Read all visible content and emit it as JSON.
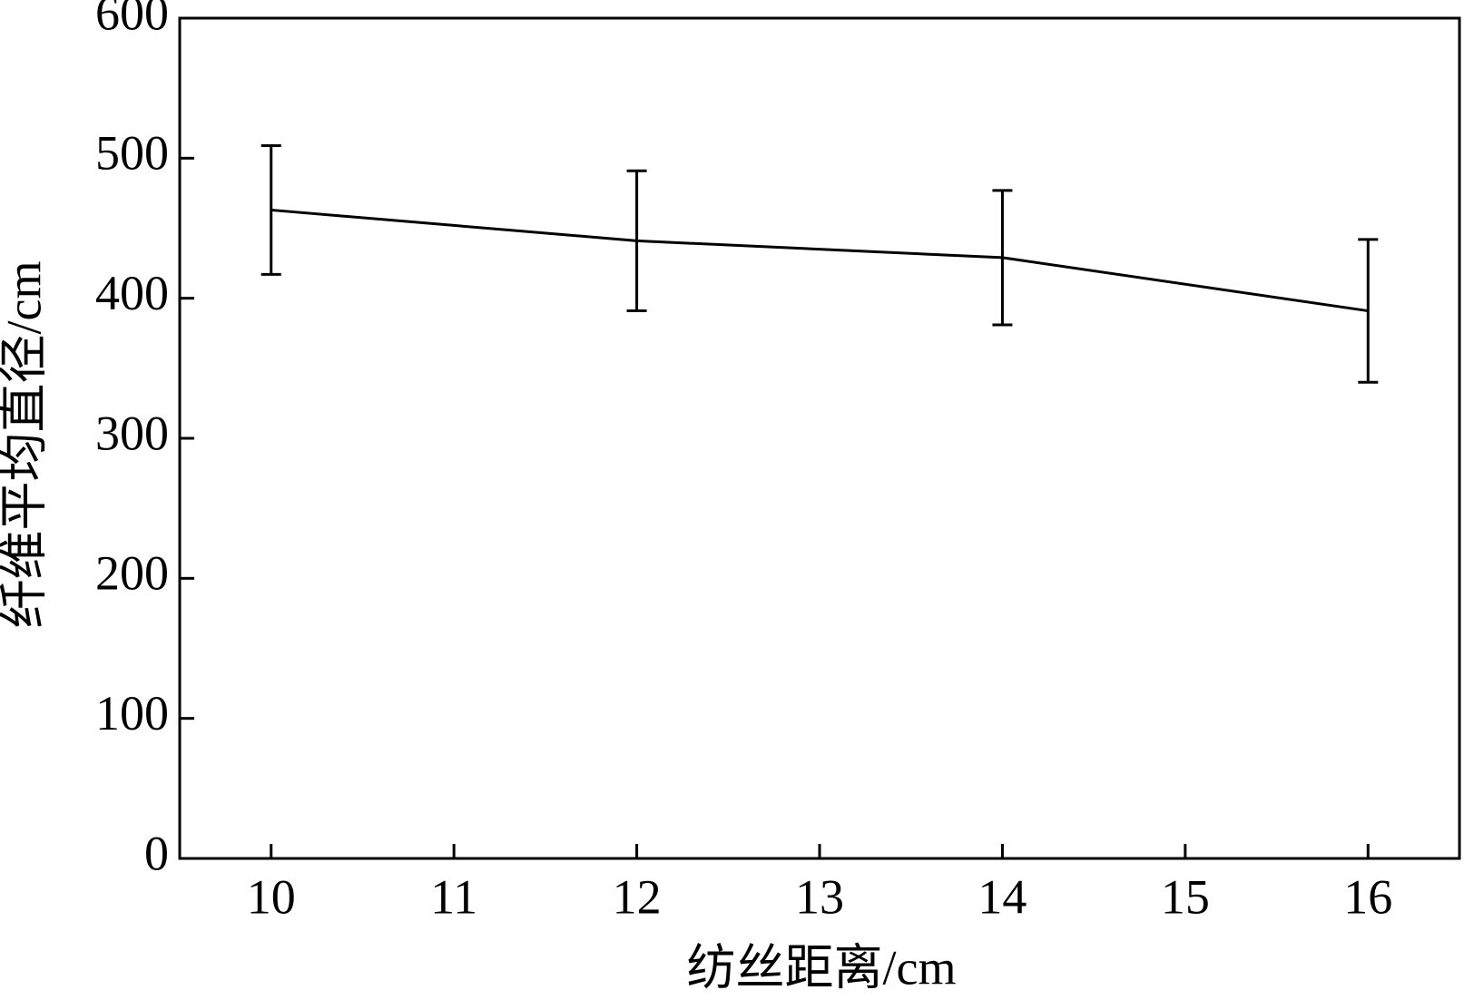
{
  "chart_data": {
    "type": "line",
    "x_label": "纺丝距离/cm",
    "y_label": "纤维平均直径/cm",
    "x": [
      10,
      12,
      14,
      16
    ],
    "series": [
      {
        "color": "#000000",
        "values": [
          463,
          441,
          429,
          391
        ],
        "errors": [
          46,
          50,
          48,
          51
        ]
      }
    ],
    "xlim": [
      9.5,
      16.5
    ],
    "xticks": [
      10,
      11,
      12,
      13,
      14,
      15,
      16
    ],
    "ylim": [
      0,
      600
    ],
    "yticks": [
      0,
      100,
      200,
      300,
      400,
      500,
      600
    ],
    "grid": false
  }
}
